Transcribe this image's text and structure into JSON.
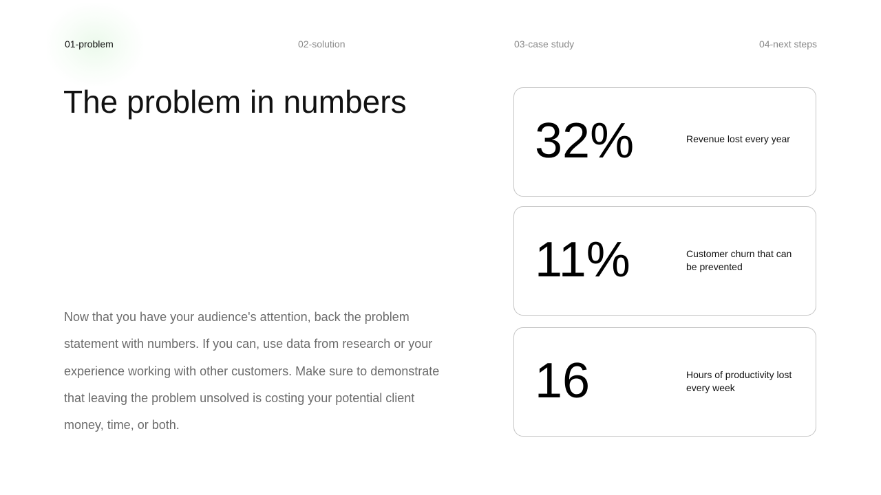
{
  "nav": {
    "items": [
      {
        "label": "01-problem"
      },
      {
        "label": "02-solution"
      },
      {
        "label": "03-case study"
      },
      {
        "label": "04-next steps"
      }
    ]
  },
  "slide": {
    "title": "The problem in numbers",
    "body": "Now that you have your audience's attention, back the problem statement with numbers. If you can, use data from research or your experience  working with other customers. Make sure to demonstrate that leaving the problem unsolved is costing your potential client money, time, or both."
  },
  "stats": [
    {
      "value": "32%",
      "label": "Revenue lost every year"
    },
    {
      "value": "11%",
      "label": "Customer churn that can be prevented"
    },
    {
      "value": "16",
      "label": "Hours of productivity lost every week"
    }
  ],
  "colors": {
    "active_nav": "#111111",
    "inactive_nav": "#8a8a8a",
    "body_text": "#6b6b6b",
    "card_border": "#c4c4c4",
    "highlight": "#e6f7e6"
  }
}
